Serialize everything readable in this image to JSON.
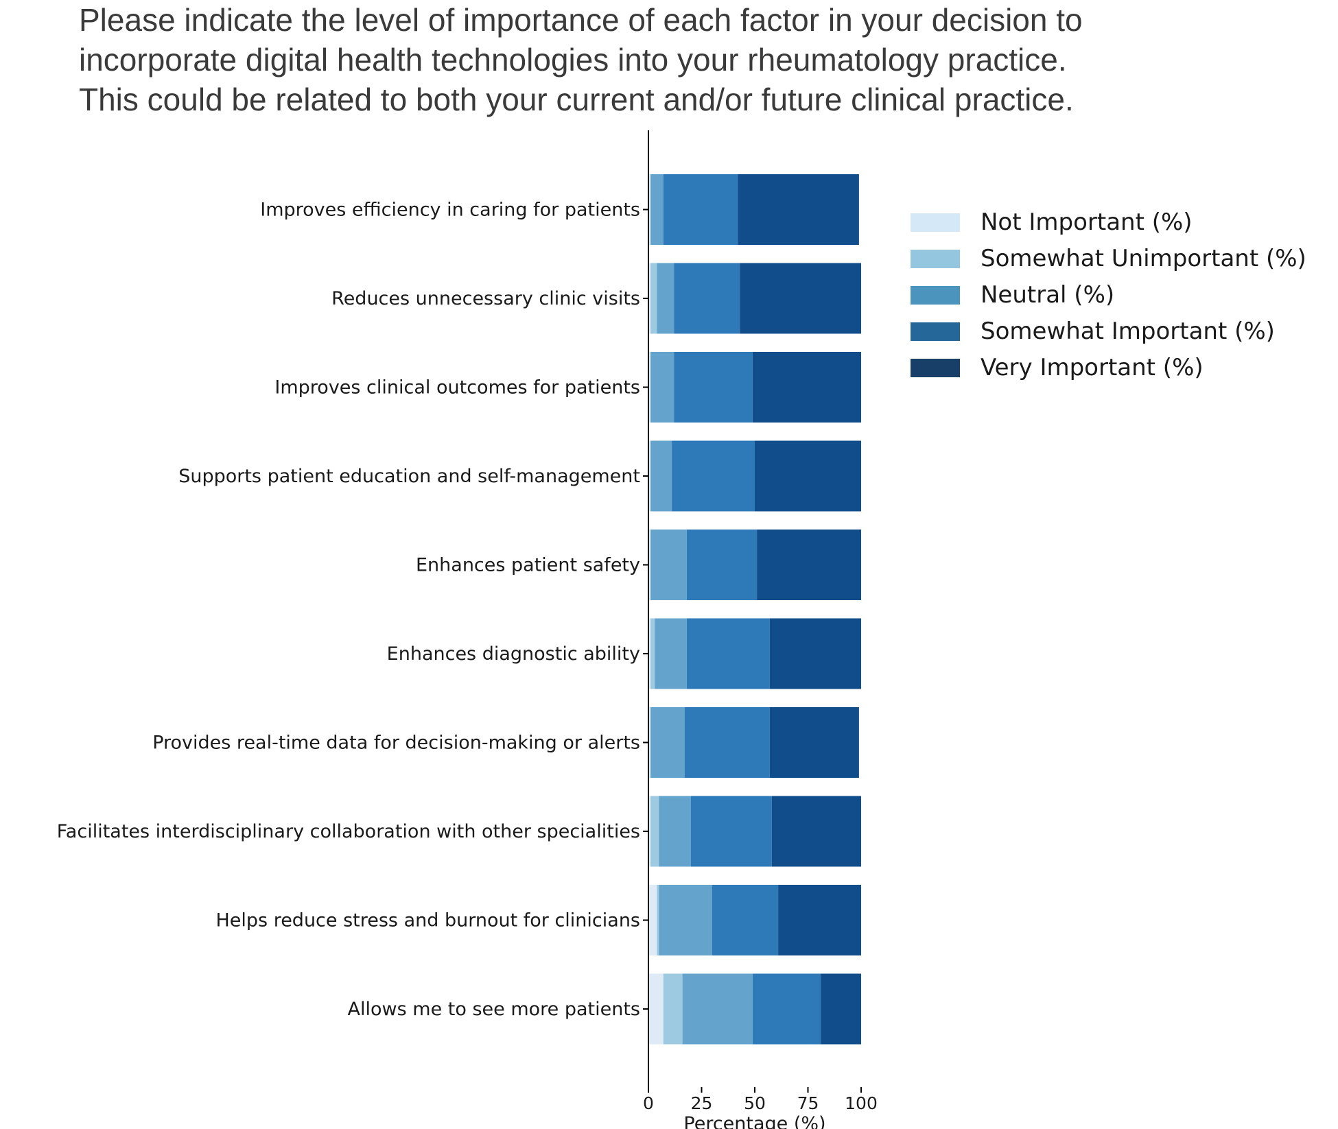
{
  "question": {
    "line1": "Please indicate the level of importance of each factor in your decision to",
    "line2": "incorporate digital health technologies into your rheumatology practice.",
    "line3": "This could be related to both your current and/or future clinical practice."
  },
  "chart_data": {
    "type": "bar",
    "orientation": "horizontal",
    "stacked": true,
    "categories": [
      "Improves efficiency in caring for patients",
      "Reduces unnecessary clinic visits",
      "Improves clinical outcomes for patients",
      "Supports patient education and self-management",
      "Enhances patient safety",
      "Enhances diagnostic ability",
      "Provides real-time data for decision-making or alerts",
      "Facilitates interdisciplinary collaboration with other specialities",
      "Helps reduce stress and burnout for clinicians",
      "Allows me to see more patients"
    ],
    "series": [
      {
        "name": "Not Important (%)",
        "values": [
          1,
          1,
          1,
          1,
          1,
          1,
          1,
          1,
          4,
          7
        ]
      },
      {
        "name": "Somewhat Unimportant (%)",
        "values": [
          0,
          3,
          0,
          0,
          0,
          2,
          0,
          4,
          1,
          9
        ]
      },
      {
        "name": "Neutral (%)",
        "values": [
          6,
          8,
          11,
          10,
          17,
          15,
          16,
          15,
          25,
          33
        ]
      },
      {
        "name": "Somewhat Important (%)",
        "values": [
          35,
          31,
          37,
          39,
          33,
          39,
          40,
          38,
          31,
          32
        ]
      },
      {
        "name": "Very Important (%)",
        "values": [
          57,
          57,
          51,
          50,
          49,
          43,
          42,
          42,
          39,
          19
        ]
      }
    ],
    "bar_colors": [
      "#deebf7",
      "#9ecae1",
      "#64a3cb",
      "#2e7ab9",
      "#114c8b"
    ],
    "legend_colors": [
      "#d5e8f7",
      "#95c6e0",
      "#4b94bd",
      "#26679a",
      "#173f68"
    ],
    "xlabel": "Percentage (%)",
    "ylabel": "",
    "xlim": [
      0,
      100
    ],
    "xticks": [
      "0",
      "25",
      "50",
      "75",
      "100"
    ],
    "grid": false,
    "legend_position": "right"
  }
}
